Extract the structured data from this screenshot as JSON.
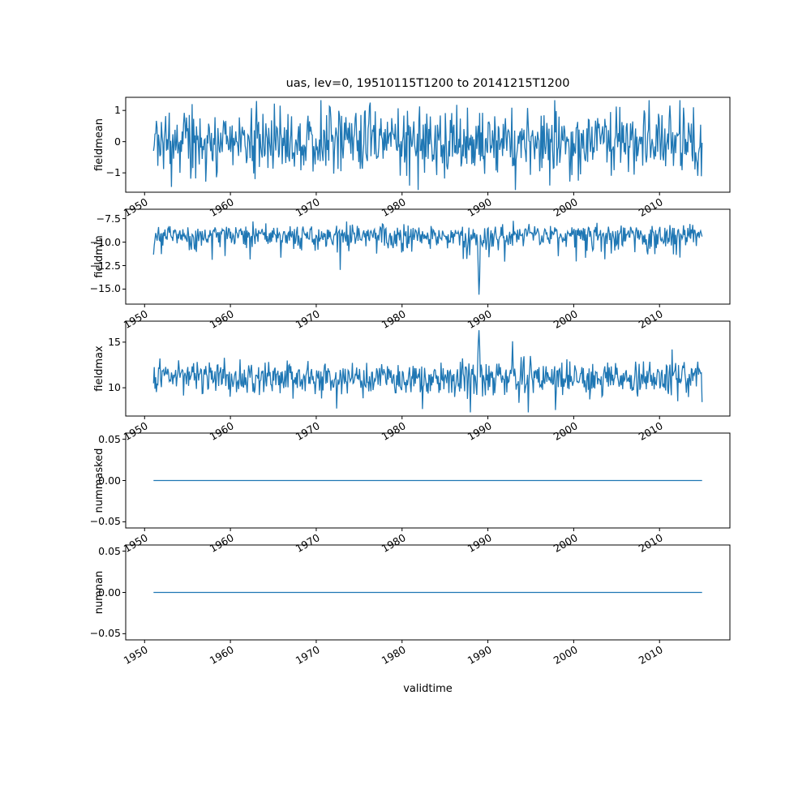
{
  "title": "uas, lev=0, 19510115T1200 to 20141215T1200",
  "xlabel": "validtime",
  "line_color": "#1f77b4",
  "chart_data": {
    "type": "line",
    "title": "uas, lev=0, 19510115T1200 to 20141215T1200",
    "xlabel": "validtime",
    "n_points": 768,
    "x_start": 1951.0417,
    "x_step": 0.0833333,
    "xlim": [
      1947.8,
      2018.2
    ],
    "x_ticks": [
      1950,
      1960,
      1970,
      1980,
      1990,
      2000,
      2010
    ],
    "x_tick_labels": [
      "1950",
      "1960",
      "1970",
      "1980",
      "1990",
      "2000",
      "2010"
    ],
    "grid": false,
    "legend": "none",
    "subplots": [
      {
        "name": "fieldmean",
        "ylabel": "fieldmean",
        "ylim": [
          -1.62,
          1.42
        ],
        "yticks": [
          1,
          0,
          -1
        ],
        "ytick_labels": [
          "1",
          "0",
          "−1"
        ],
        "series": {
          "type": "noise",
          "seed": 20,
          "mean": 0.0,
          "sd": 0.52,
          "skew": "none",
          "spike_prob": 0,
          "spike_mag": 0,
          "clamp": [
            -1.55,
            1.33
          ],
          "spikes": [
            {
              "x": 1976.3,
              "y": 1.25
            },
            {
              "x": 1993.2,
              "y": -1.55
            },
            {
              "x": 2012.4,
              "y": 1.33
            }
          ]
        }
      },
      {
        "name": "fieldmin",
        "ylabel": "fieldmin",
        "ylim": [
          -16.6,
          -6.5
        ],
        "yticks": [
          -7.5,
          -10.0,
          -12.5,
          -15.0
        ],
        "ytick_labels": [
          "−7.5",
          "−10.0",
          "−12.5",
          "−15.0"
        ],
        "series": {
          "type": "noise",
          "seed": 7,
          "mean": -8.55,
          "sd": 1.0,
          "skew": "down",
          "spike_prob": 0.05,
          "spike_mag": -2.5,
          "clamp": [
            -15.7,
            -7.1
          ],
          "spikes": [
            {
              "x": 1988.88,
              "y": -12.9
            },
            {
              "x": 1988.96,
              "y": -15.6
            },
            {
              "x": 1989.04,
              "y": -13.9
            }
          ]
        }
      },
      {
        "name": "fieldmax",
        "ylabel": "fieldmax",
        "ylim": [
          6.9,
          17.3
        ],
        "yticks": [
          15,
          10
        ],
        "ytick_labels": [
          "15",
          "10"
        ],
        "series": {
          "type": "noise",
          "seed": 13,
          "mean": 11.1,
          "sd": 0.9,
          "skew": "none",
          "spike_prob": 0.05,
          "spike_mag": -2.2,
          "clamp": [
            7.3,
            14.8
          ],
          "spikes": [
            {
              "x": 1988.88,
              "y": 14.9
            },
            {
              "x": 1988.96,
              "y": 16.3
            },
            {
              "x": 1989.04,
              "y": 14.6
            },
            {
              "x": 1992.9,
              "y": 15.1
            },
            {
              "x": 2011.5,
              "y": 14.2
            }
          ]
        }
      },
      {
        "name": "nummasked",
        "ylabel": "nummasked",
        "ylim": [
          -0.0575,
          0.0575
        ],
        "yticks": [
          0.05,
          0.0,
          -0.05
        ],
        "ytick_labels": [
          "0.05",
          "0.00",
          "−0.05"
        ],
        "series": {
          "type": "flat",
          "value": 0
        }
      },
      {
        "name": "numnan",
        "ylabel": "numnan",
        "ylim": [
          -0.0575,
          0.0575
        ],
        "yticks": [
          0.05,
          0.0,
          -0.05
        ],
        "ytick_labels": [
          "0.05",
          "0.00",
          "−0.05"
        ],
        "series": {
          "type": "flat",
          "value": 0
        }
      }
    ]
  }
}
